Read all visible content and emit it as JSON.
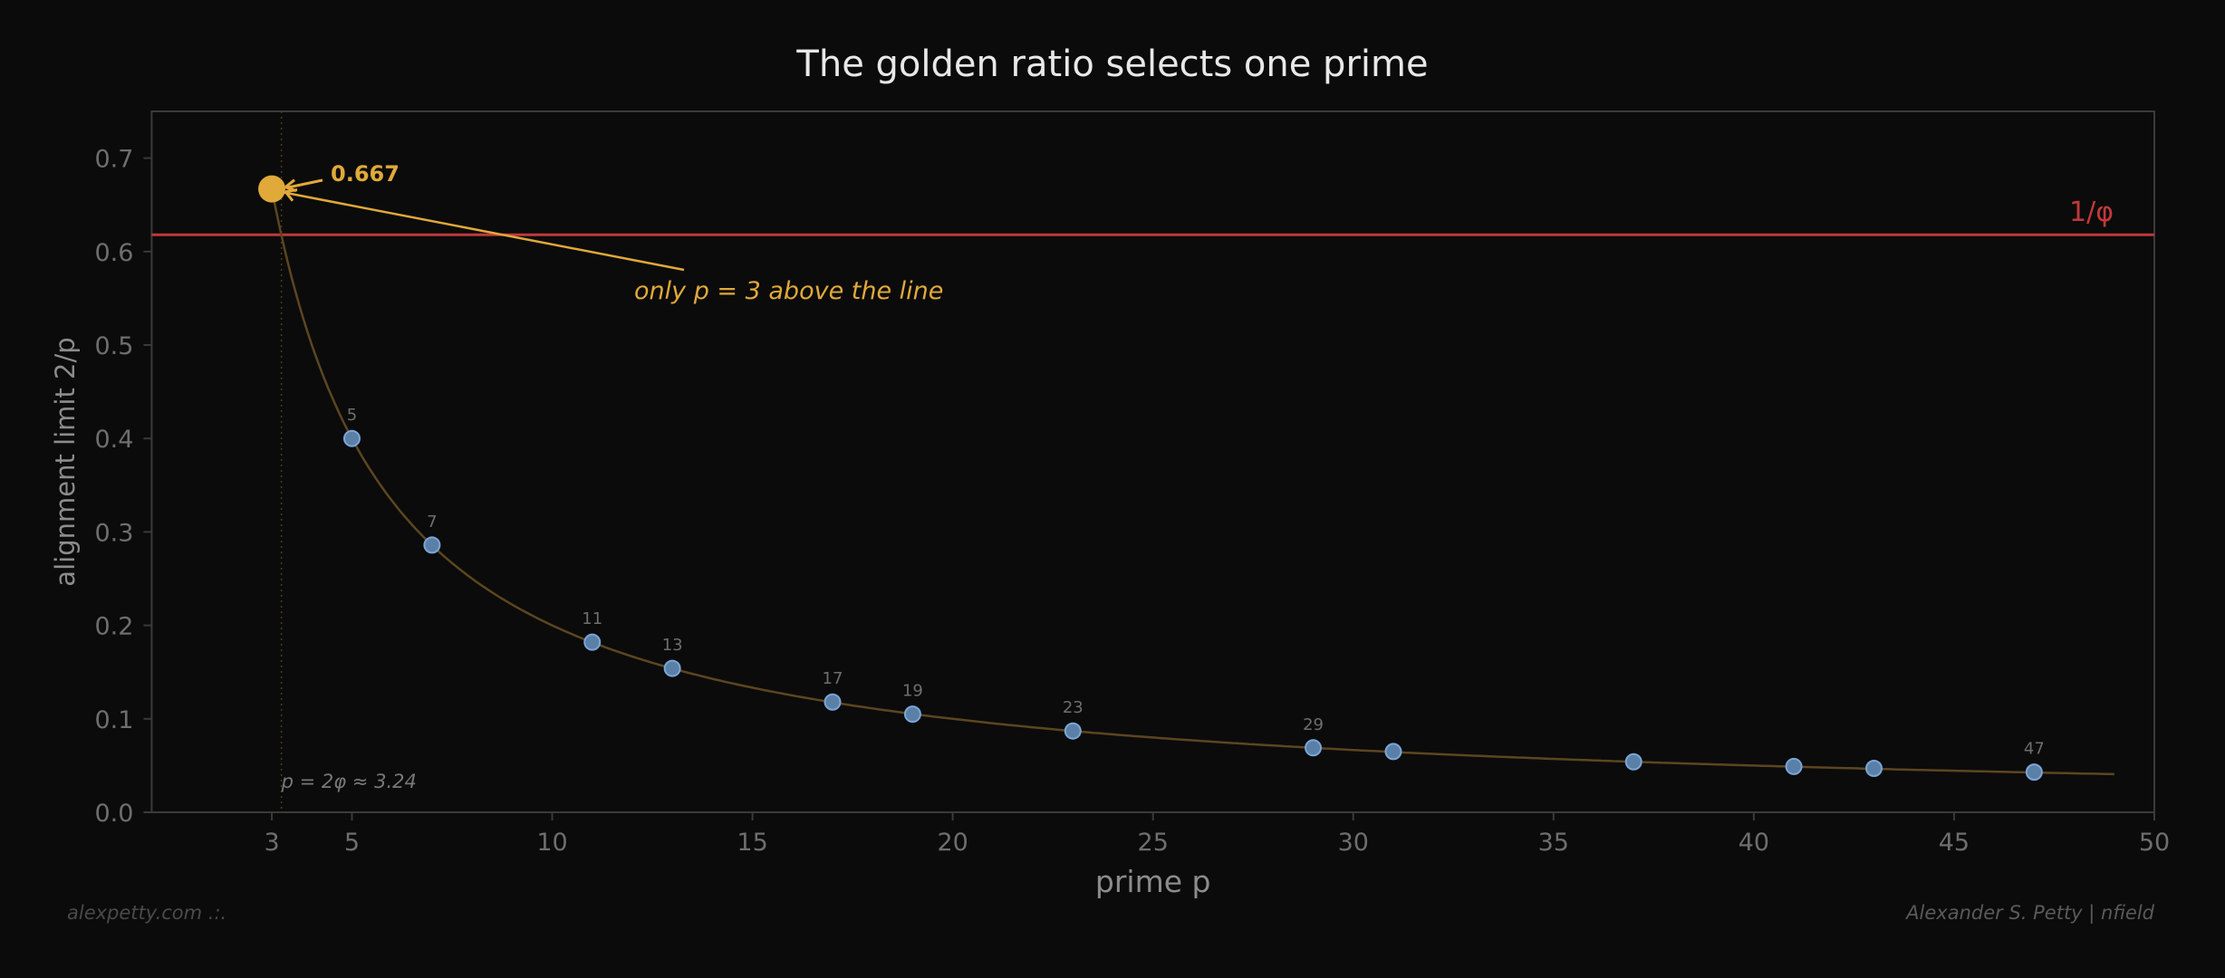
{
  "page": {
    "title": "The golden ratio selects one prime",
    "footer_left": "alexpetty.com  .:.",
    "footer_right": "Alexander S. Petty  |  nfield"
  },
  "colors": {
    "background": "#0b0b0b",
    "spine": "#3a3a3a",
    "tick_label": "#6e6e6e",
    "axis_label": "#8c8c8c",
    "threshold": "#c0393b",
    "highlight": "#e0a93a",
    "curve": "#5c4620",
    "point_fill": "#5b80a8",
    "point_edge": "#7aa6d6",
    "point_label": "#6e6e6e"
  },
  "chart_data": {
    "type": "scatter",
    "title": "The golden ratio selects one prime",
    "xlabel": "prime p",
    "ylabel": "alignment limit  2/p",
    "xlim": [
      0,
      50
    ],
    "ylim": [
      0,
      0.75
    ],
    "xticks": [
      3,
      5,
      10,
      15,
      20,
      25,
      30,
      35,
      40,
      45,
      50
    ],
    "yticks": [
      0.0,
      0.1,
      0.2,
      0.3,
      0.4,
      0.5,
      0.6,
      0.7
    ],
    "grid": false,
    "curve": {
      "label": "2/p",
      "x_range": [
        3,
        49
      ]
    },
    "series": [
      {
        "name": "primes",
        "x": [
          3,
          5,
          7,
          11,
          13,
          17,
          19,
          23,
          29,
          31,
          37,
          41,
          43,
          47
        ],
        "y": [
          0.667,
          0.4,
          0.286,
          0.182,
          0.154,
          0.118,
          0.105,
          0.087,
          0.069,
          0.065,
          0.054,
          0.049,
          0.047,
          0.043
        ]
      }
    ],
    "labeled_points": [
      5,
      7,
      11,
      13,
      17,
      19,
      23,
      29,
      47
    ],
    "highlight_point": {
      "x": 3,
      "y": 0.667,
      "label": "0.667"
    },
    "hline": {
      "y": 0.618,
      "label": "1/φ"
    },
    "vline": {
      "x": 3.24,
      "label": "p = 2φ ≈ 3.24"
    },
    "annotations": [
      {
        "text": "0.667",
        "target": [
          3,
          0.667
        ]
      },
      {
        "text": "only p = 3 above the line",
        "target": [
          3,
          0.667
        ]
      }
    ]
  }
}
